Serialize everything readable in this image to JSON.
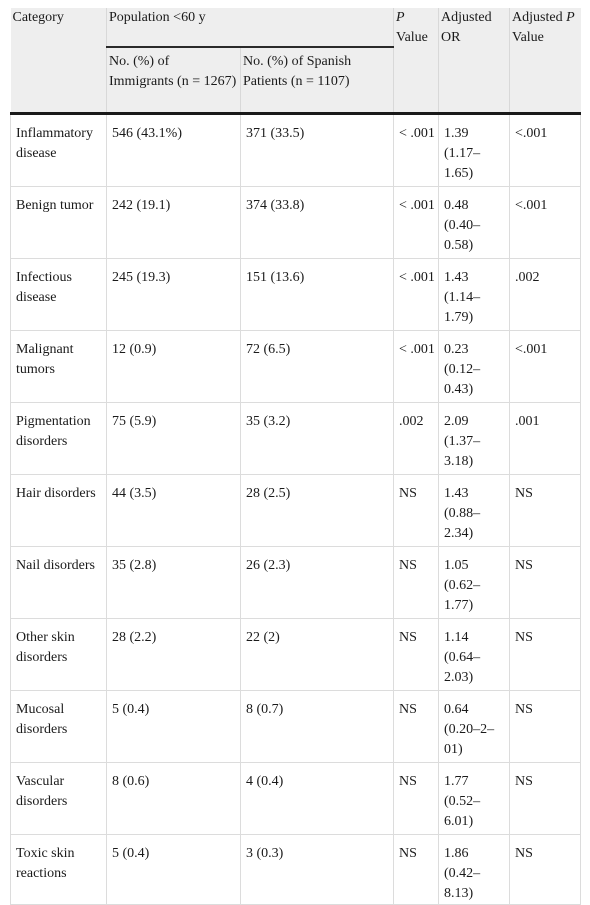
{
  "table": {
    "headers": {
      "category": "Category",
      "population": "Population <60 y",
      "immigrants": "No. (%) of Immigrants (n = 1267)",
      "spanish": "No. (%) of Spanish Patients (n = 1107)",
      "p_value_italic": "P",
      "p_value_rest": " Value",
      "adjusted_or": "Adjusted OR",
      "adjusted_p_prefix": "Adjusted ",
      "adjusted_p_italic": "P",
      "adjusted_p_rest": " Value"
    },
    "rows": [
      {
        "category": "Inflammatory disease",
        "immigrants": "546 (43.1%)",
        "spanish": "371 (33.5)",
        "p": "< .001",
        "or": "1.39 (1.17–1.65)",
        "adj_p": "<.001"
      },
      {
        "category": "Benign tumor",
        "immigrants": "242 (19.1)",
        "spanish": "374 (33.8)",
        "p": "< .001",
        "or": "0.48 (0.40–0.58)",
        "adj_p": "<.001"
      },
      {
        "category": "Infectious disease",
        "immigrants": "245 (19.3)",
        "spanish": "151 (13.6)",
        "p": "< .001",
        "or": "1.43 (1.14–1.79)",
        "adj_p": ".002"
      },
      {
        "category": "Malignant tumors",
        "immigrants": "12 (0.9)",
        "spanish": "72 (6.5)",
        "p": "< .001",
        "or": "0.23 (0.12–0.43)",
        "adj_p": "<.001"
      },
      {
        "category": "Pigmentation disorders",
        "immigrants": "75 (5.9)",
        "spanish": "35 (3.2)",
        "p": ".002",
        "or": "2.09 (1.37–3.18)",
        "adj_p": ".001"
      },
      {
        "category": "Hair disorders",
        "immigrants": "44 (3.5)",
        "spanish": "28 (2.5)",
        "p": "NS",
        "or": "1.43 (0.88–2.34)",
        "adj_p": "NS"
      },
      {
        "category": "Nail disorders",
        "immigrants": "35 (2.8)",
        "spanish": "26 (2.3)",
        "p": "NS",
        "or": "1.05 (0.62–1.77)",
        "adj_p": "NS"
      },
      {
        "category": "Other skin disorders",
        "immigrants": "28 (2.2)",
        "spanish": "22 (2)",
        "p": "NS",
        "or": "1.14 (0.64–2.03)",
        "adj_p": "NS"
      },
      {
        "category": "Mucosal disorders",
        "immigrants": "5 (0.4)",
        "spanish": "8 (0.7)",
        "p": "NS",
        "or": "0.64 (0.20–2–01)",
        "adj_p": "NS"
      },
      {
        "category": "Vascular disorders",
        "immigrants": "8 (0.6)",
        "spanish": "4 (0.4)",
        "p": "NS",
        "or": "1.77 (0.52–6.01)",
        "adj_p": "NS"
      },
      {
        "category": "Toxic skin reactions",
        "immigrants": "5 (0.4)",
        "spanish": "3 (0.3)",
        "p": "NS",
        "or": "1.86 (0.42–8.13)",
        "adj_p": "NS"
      }
    ]
  }
}
